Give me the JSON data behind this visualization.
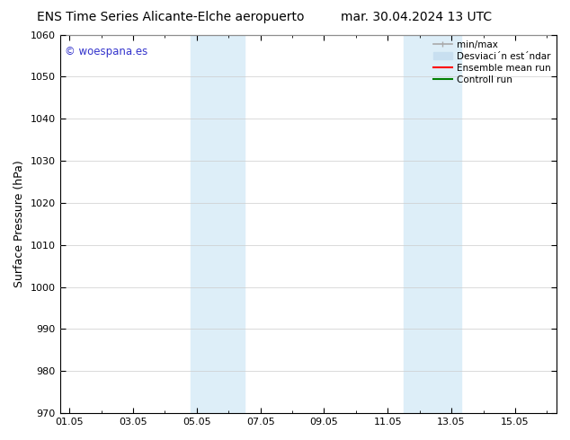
{
  "title_left": "ENS Time Series Alicante-Elche aeropuerto",
  "title_right": "mar. 30.04.2024 13 UTC",
  "ylabel": "Surface Pressure (hPa)",
  "ylim": [
    970,
    1060
  ],
  "yticks": [
    970,
    980,
    990,
    1000,
    1010,
    1020,
    1030,
    1040,
    1050,
    1060
  ],
  "xtick_labels": [
    "01.05",
    "03.05",
    "05.05",
    "07.05",
    "09.05",
    "11.05",
    "13.05",
    "15.05"
  ],
  "xtick_positions": [
    0,
    2,
    4,
    6,
    8,
    10,
    12,
    14
  ],
  "xlim": [
    -0.3,
    15.3
  ],
  "shaded_bands": [
    {
      "x_start": 3.8,
      "x_end": 5.5,
      "color": "#ddeef8"
    },
    {
      "x_start": 10.5,
      "x_end": 12.3,
      "color": "#ddeef8"
    }
  ],
  "watermark_text": "© woespana.es",
  "watermark_color": "#3333cc",
  "background_color": "#ffffff",
  "grid_color": "#cccccc",
  "legend_label_minmax": "min/max",
  "legend_label_std": "Desviaci´´n est´´ndar",
  "legend_label_ensemble": "Ensemble mean run",
  "legend_label_control": "Controll run",
  "legend_color_minmax": "#aaaaaa",
  "legend_color_std": "#c8dff0",
  "legend_color_ensemble": "#ff0000",
  "legend_color_control": "#008000",
  "title_fontsize": 10,
  "tick_fontsize": 8,
  "ylabel_fontsize": 9,
  "legend_fontsize": 7.5
}
